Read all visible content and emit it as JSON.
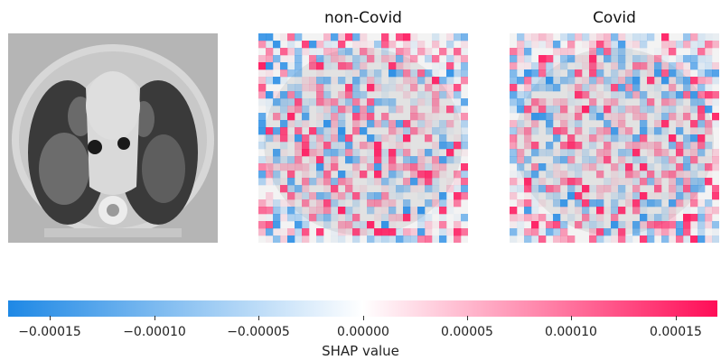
{
  "panels": [
    {
      "title": "",
      "kind": "ct-scan-image"
    },
    {
      "title": "non-Covid",
      "kind": "shap-heatmap"
    },
    {
      "title": "Covid",
      "kind": "shap-heatmap"
    }
  ],
  "chart_data": {
    "type": "heatmap",
    "title": "",
    "panel_titles": [
      "non-Covid",
      "Covid"
    ],
    "colorbar": {
      "label": "SHAP value",
      "range": [
        -0.00017,
        0.00017
      ],
      "ticks": [
        -0.00015,
        -0.0001,
        -5e-05,
        0.0,
        5e-05,
        0.0001,
        0.00015
      ],
      "tick_labels": [
        "−0.00015",
        "−0.00010",
        "−0.00005",
        "0.00000",
        "0.00005",
        "0.00010",
        "0.00015"
      ],
      "negative_color": "#1e88e5",
      "neutral_color": "#ffffff",
      "positive_color": "#ff0d57"
    }
  }
}
